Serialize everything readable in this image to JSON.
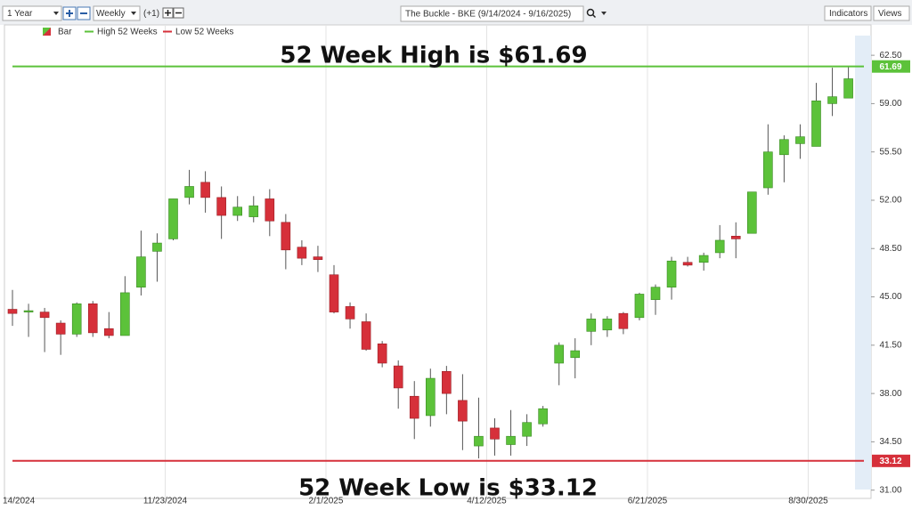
{
  "toolbar": {
    "range": "1 Year",
    "interval": "Weekly",
    "offset": "(+1)",
    "symbol_title": "The Buckle - BKE (9/14/2024 - 9/16/2025)",
    "indicators": "Indicators",
    "views": "Views"
  },
  "chart_data": {
    "type": "candlestick",
    "annotations": [
      "52 Week High is $61.69",
      "52 Week Low is $33.12"
    ],
    "categories": [
      "14/2024",
      null,
      null,
      null,
      null,
      null,
      null,
      null,
      null,
      null,
      "11/23/2024",
      null,
      null,
      null,
      null,
      null,
      null,
      null,
      null,
      null,
      "2/1/2025",
      null,
      null,
      null,
      null,
      null,
      null,
      null,
      null,
      null,
      "4/12/2025",
      null,
      null,
      null,
      null,
      null,
      null,
      null,
      null,
      null,
      "6/21/2025",
      null,
      null,
      null,
      null,
      null,
      null,
      null,
      null,
      null,
      "8/30/2025",
      null,
      null
    ],
    "candles": {
      "name": "Bar",
      "up_color": "#5cc23a",
      "down_color": "#d6303a",
      "open": [
        44.1,
        43.9,
        43.9,
        43.1,
        42.3,
        44.5,
        42.7,
        42.2,
        45.7,
        48.3,
        49.2,
        52.2,
        53.3,
        52.2,
        50.9,
        50.8,
        52.1,
        50.4,
        48.6,
        47.9,
        46.6,
        44.3,
        43.2,
        41.6,
        40.0,
        37.8,
        36.4,
        39.6,
        37.5,
        34.2,
        35.5,
        34.3,
        34.9,
        35.8,
        40.2,
        40.6,
        42.5,
        42.6,
        43.8,
        43.5,
        44.8,
        45.7,
        47.5,
        47.5,
        48.2,
        49.4,
        49.6,
        52.9,
        55.3,
        56.1,
        55.9,
        59.0,
        59.4
      ],
      "high": [
        45.5,
        44.5,
        44.2,
        43.3,
        44.6,
        44.7,
        43.9,
        46.5,
        49.8,
        49.6,
        52.1,
        54.2,
        54.1,
        53.0,
        52.3,
        52.3,
        52.8,
        51.0,
        49.1,
        48.7,
        47.3,
        44.6,
        43.8,
        41.8,
        40.4,
        38.9,
        39.8,
        40.0,
        39.4,
        37.7,
        36.2,
        36.8,
        36.5,
        37.1,
        41.7,
        42.0,
        43.8,
        43.6,
        43.9,
        45.3,
        45.9,
        47.9,
        47.9,
        48.2,
        50.2,
        50.4,
        52.6,
        57.5,
        56.7,
        57.5,
        60.5,
        61.6,
        61.69
      ],
      "low": [
        42.9,
        42.1,
        41.0,
        40.8,
        42.1,
        42.1,
        42.0,
        42.2,
        45.1,
        46.1,
        49.1,
        51.7,
        51.1,
        49.2,
        50.5,
        50.4,
        49.4,
        47.0,
        47.3,
        46.8,
        43.8,
        42.7,
        41.1,
        39.9,
        36.9,
        34.7,
        35.6,
        36.5,
        33.9,
        33.3,
        33.5,
        33.5,
        34.2,
        35.6,
        38.6,
        39.1,
        41.5,
        42.1,
        42.3,
        43.3,
        43.7,
        44.8,
        47.2,
        46.9,
        47.8,
        47.8,
        49.6,
        52.4,
        53.3,
        55.0,
        55.9,
        58.1,
        59.4
      ],
      "close": [
        43.8,
        44.0,
        43.5,
        42.3,
        44.5,
        42.4,
        42.2,
        45.3,
        47.9,
        48.9,
        52.1,
        53.0,
        52.2,
        50.9,
        51.5,
        51.6,
        50.5,
        48.4,
        47.8,
        47.7,
        43.9,
        43.4,
        41.2,
        40.2,
        38.4,
        36.2,
        39.1,
        38.0,
        36.0,
        34.9,
        34.7,
        34.9,
        35.9,
        36.9,
        41.5,
        41.1,
        43.4,
        43.4,
        42.7,
        45.2,
        45.7,
        47.6,
        47.3,
        48.0,
        49.1,
        49.2,
        52.6,
        55.5,
        56.4,
        56.6,
        59.2,
        59.5,
        60.8
      ]
    },
    "hlines": [
      {
        "name": "High 52 Weeks",
        "color": "#5cc23a",
        "value": 61.69
      },
      {
        "name": "Low 52 Weeks",
        "color": "#d6303a",
        "value": 33.12
      }
    ],
    "ylim": [
      30.4,
      64.7
    ],
    "yticks": [
      {
        "value": 31,
        "label": "31.00"
      },
      {
        "value": 34.5,
        "label": "34.50"
      },
      {
        "value": 38,
        "label": "38.00"
      },
      {
        "value": 41.5,
        "label": "41.50"
      },
      {
        "value": 45,
        "label": "45.00"
      },
      {
        "value": 48.5,
        "label": "48.50"
      },
      {
        "value": 52,
        "label": "52.00"
      },
      {
        "value": 55.5,
        "label": "55.50"
      },
      {
        "value": 59,
        "label": "59.00"
      },
      {
        "value": 62.5,
        "label": "62.50"
      }
    ],
    "grid": "x"
  }
}
